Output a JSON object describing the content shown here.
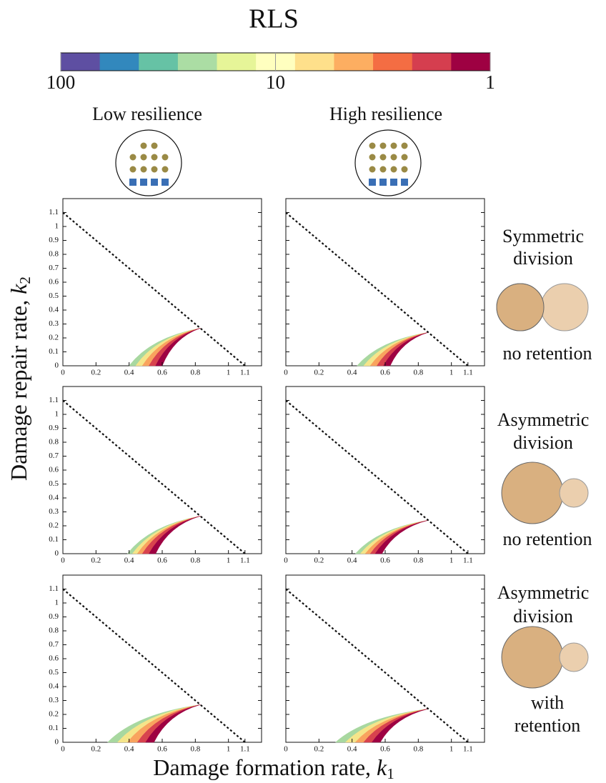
{
  "chart_data": {
    "type": "area",
    "title": "RLS",
    "colorbar": {
      "colors": [
        "#5e4fa2",
        "#3288bd",
        "#66c2a5",
        "#abdda4",
        "#e6f598",
        "#ffffbf",
        "#fee08b",
        "#fdae61",
        "#f46d43",
        "#d53e4f",
        "#9e0142"
      ],
      "lim": [
        100,
        1
      ],
      "ticks": [
        100,
        10,
        1
      ],
      "log": true
    },
    "xlabel": {
      "text": "Damage formation rate, ",
      "var": "k",
      "sub": "1"
    },
    "ylabel": {
      "text": "Damage repair rate, ",
      "var": "k",
      "sub": "2"
    },
    "xlim": [
      0,
      1.2
    ],
    "ylim": [
      0,
      1.2
    ],
    "xticks": [
      0,
      0.2,
      0.4,
      0.6,
      0.8,
      1,
      1.1
    ],
    "yticks": [
      0,
      0.1,
      0.2,
      0.3,
      0.4,
      0.5,
      0.6,
      0.7,
      0.8,
      0.9,
      1,
      1.1
    ],
    "columns": [
      "Low resilience",
      "High resilience"
    ],
    "rows": [
      {
        "above": [
          "Symmetric",
          "division"
        ],
        "below": [
          "no retention"
        ]
      },
      {
        "above": [
          "Asymmetric",
          "division"
        ],
        "below": [
          "no retention"
        ]
      },
      {
        "above": [
          "Asymmetric",
          "division"
        ],
        "below": [
          "with",
          "retention"
        ]
      }
    ],
    "threshold": {
      "x": [
        0,
        1.1
      ],
      "y": [
        1.1,
        0
      ]
    },
    "band_colors": [
      "#a8d8a0",
      "#f5e58a",
      "#f9a35e",
      "#d8434e",
      "#9e0142"
    ],
    "panels": [
      {
        "tip": [
          0.83,
          0.27
        ],
        "edges": [
          0.4,
          0.44,
          0.48,
          0.52,
          0.56,
          0.6
        ]
      },
      {
        "tip": [
          0.86,
          0.24
        ],
        "edges": [
          0.43,
          0.47,
          0.51,
          0.55,
          0.59,
          0.63
        ]
      },
      {
        "tip": [
          0.83,
          0.27
        ],
        "edges": [
          0.39,
          0.42,
          0.45,
          0.48,
          0.52,
          0.56
        ]
      },
      {
        "tip": [
          0.86,
          0.24
        ],
        "edges": [
          0.42,
          0.45,
          0.48,
          0.51,
          0.54,
          0.58
        ]
      },
      {
        "tip": [
          0.83,
          0.27
        ],
        "edges": [
          0.27,
          0.33,
          0.39,
          0.45,
          0.5,
          0.55
        ]
      },
      {
        "tip": [
          0.86,
          0.24
        ],
        "edges": [
          0.3,
          0.36,
          0.42,
          0.47,
          0.52,
          0.57
        ]
      }
    ]
  }
}
